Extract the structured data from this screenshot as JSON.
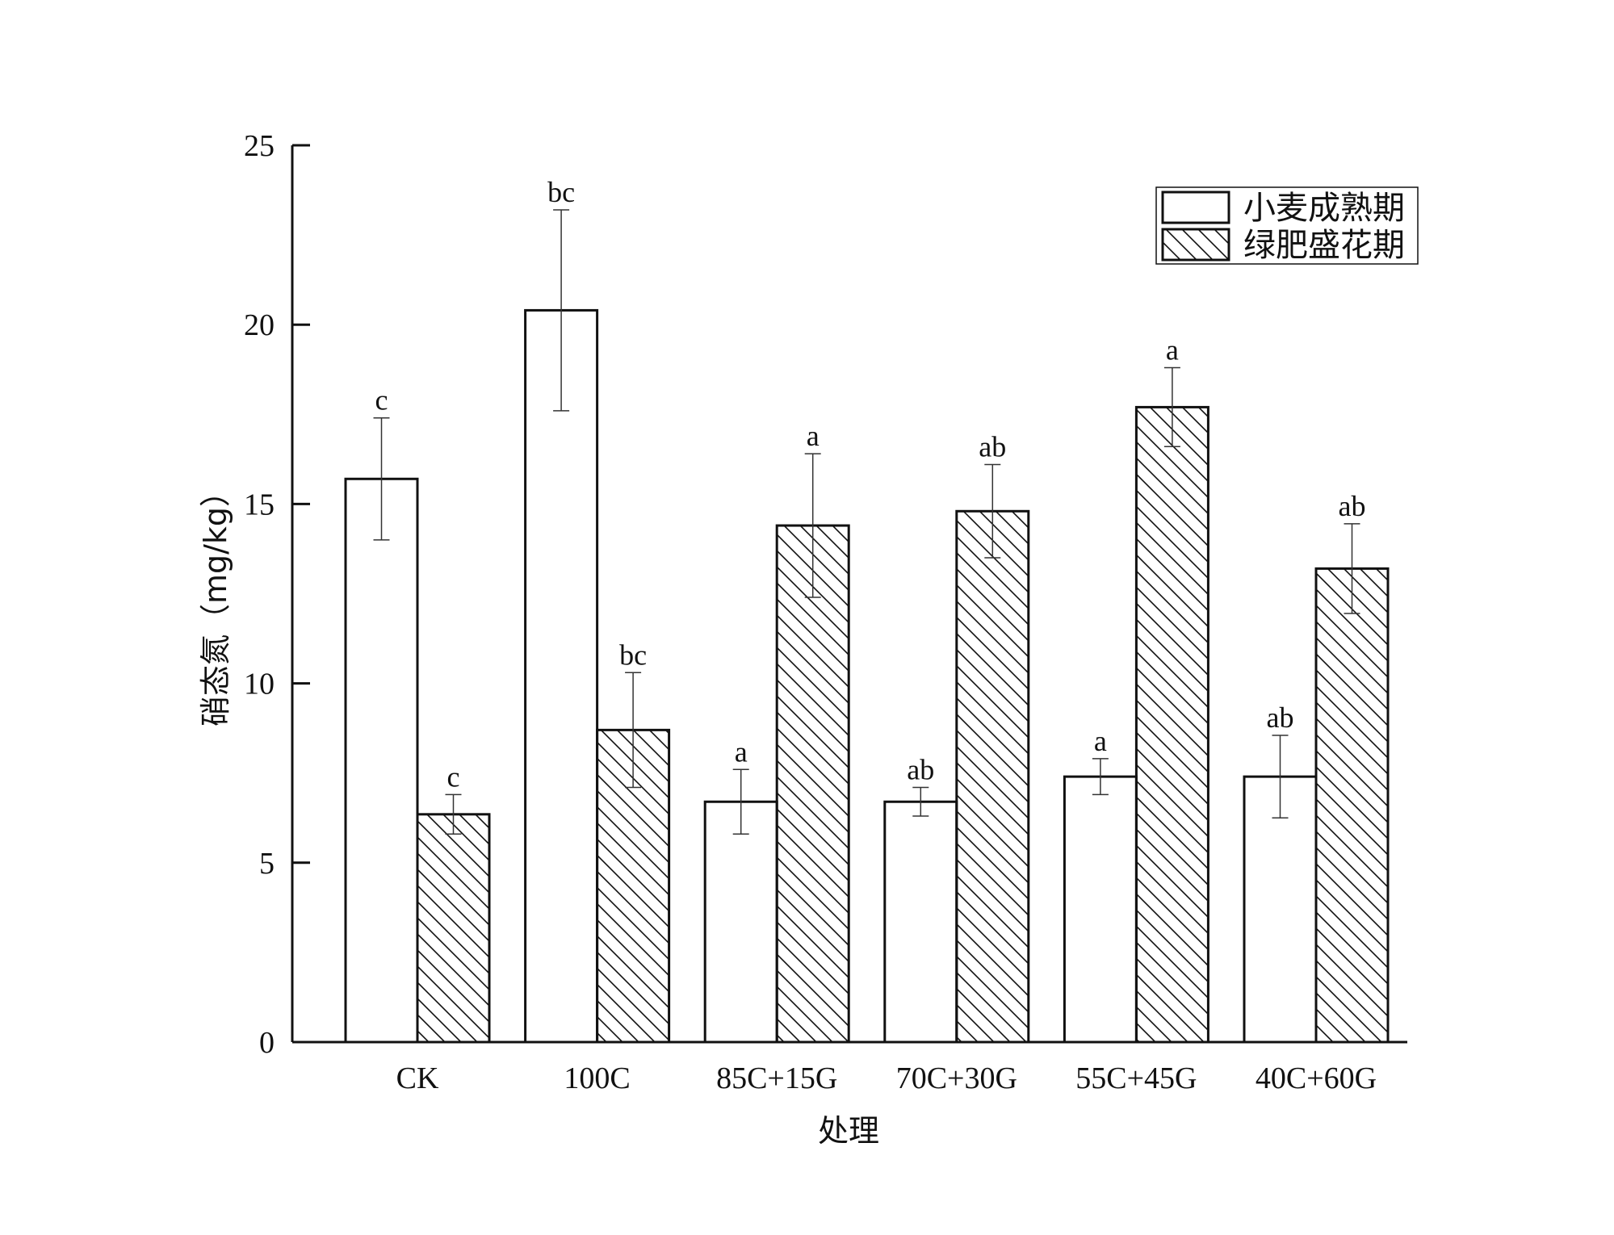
{
  "chart_data": {
    "type": "bar",
    "ylabel": "硝态氮（mg/kg）",
    "xlabel": "处理",
    "ylim": [
      0,
      25
    ],
    "yticks": [
      0,
      5,
      10,
      15,
      20,
      25
    ],
    "grid": false,
    "legend_position": "top-right",
    "categories": [
      "CK",
      "100C",
      "85C+15G",
      "70C+30G",
      "55C+45G",
      "40C+60G"
    ],
    "series": [
      {
        "name": "小麦成熟期",
        "pattern": "plain",
        "values": [
          15.7,
          20.4,
          6.7,
          6.7,
          7.4,
          7.4
        ],
        "errors": [
          1.7,
          2.8,
          0.9,
          0.4,
          0.5,
          1.15
        ],
        "letters": [
          "c",
          "bc",
          "a",
          "ab",
          "a",
          "ab"
        ]
      },
      {
        "name": "绿肥盛花期",
        "pattern": "hatched",
        "values": [
          6.35,
          8.7,
          14.4,
          14.8,
          17.7,
          13.2
        ],
        "errors": [
          0.55,
          1.6,
          2.0,
          1.3,
          1.1,
          1.25
        ],
        "letters": [
          "c",
          "bc",
          "a",
          "ab",
          "a",
          "ab"
        ]
      }
    ],
    "colors": {
      "bar_fill": "#ffffff",
      "bar_stroke": "#111111",
      "hatch": "#111111"
    }
  }
}
